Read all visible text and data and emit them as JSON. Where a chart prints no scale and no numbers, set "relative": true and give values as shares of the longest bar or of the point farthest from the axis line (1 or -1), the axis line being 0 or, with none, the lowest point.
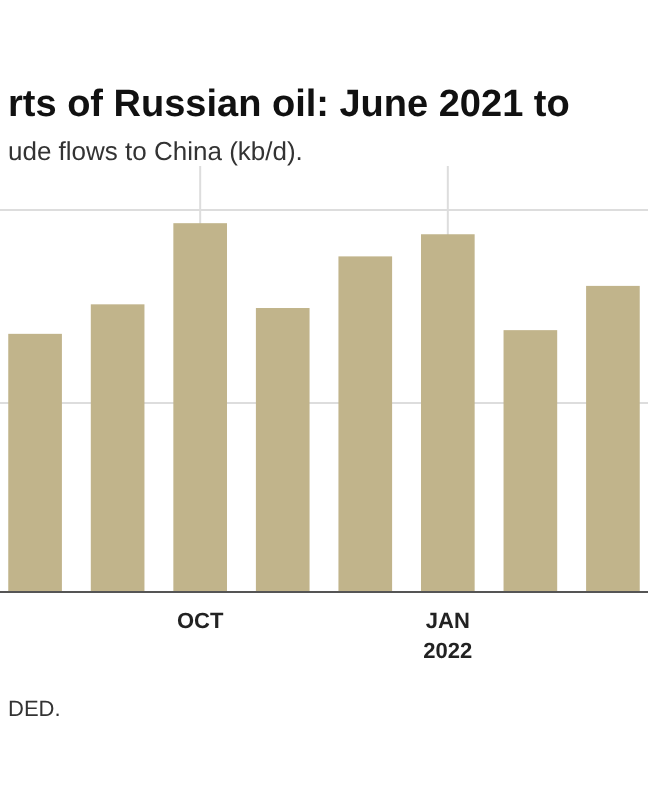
{
  "chart_data": {
    "type": "bar",
    "title": "rts of Russian oil: June 2021 to",
    "subtitle": "ude flows to China (kb/d).",
    "categories": [
      null,
      null,
      "OCT",
      null,
      null,
      "JAN\n2022",
      null,
      null
    ],
    "values": [
      0.7,
      0.78,
      1,
      0.77,
      0.91,
      0.97,
      0.71,
      0.83
    ],
    "relative": true,
    "color": "#c1b48b",
    "grid": true,
    "annotations": [
      "DED."
    ]
  }
}
